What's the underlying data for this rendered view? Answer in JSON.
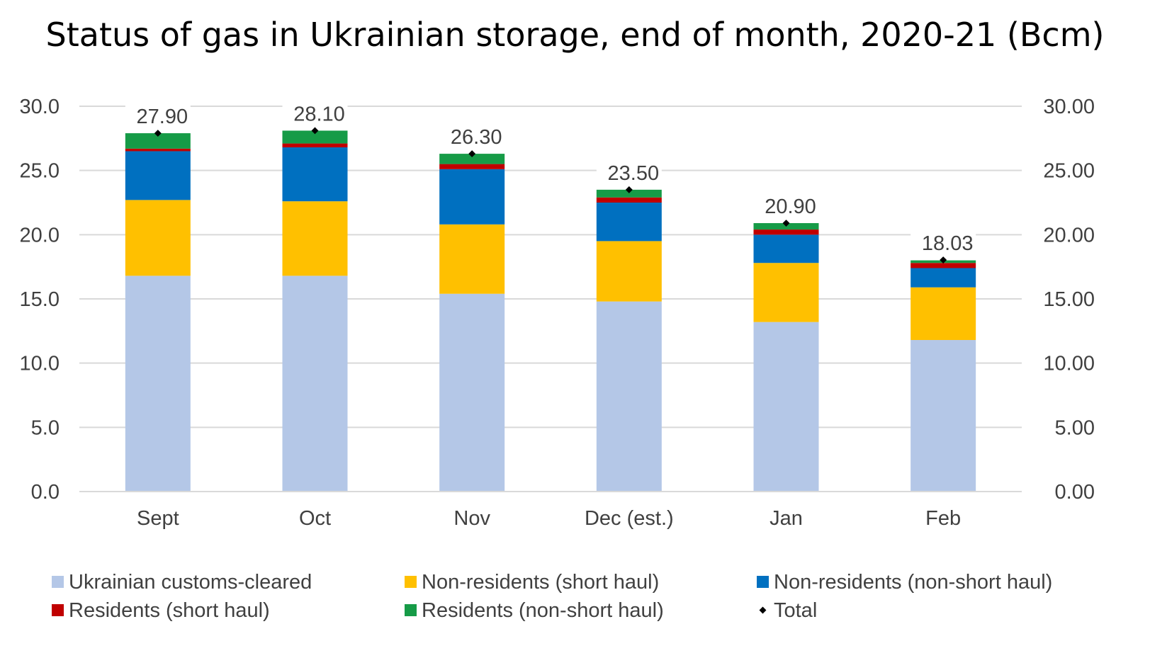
{
  "chart_data": {
    "type": "bar",
    "stacked": true,
    "title": "Status of gas in Ukrainian storage, end of month, 2020-21 (Bcm)",
    "categories": [
      "Sept",
      "Oct",
      "Nov",
      "Dec (est.)",
      "Jan",
      "Feb"
    ],
    "series": [
      {
        "name": "Ukrainian customs-cleared",
        "color": "#B4C7E7",
        "values": [
          16.8,
          16.8,
          15.4,
          14.8,
          13.2,
          11.8
        ]
      },
      {
        "name": "Non-residents (short haul)",
        "color": "#FFC000",
        "values": [
          5.9,
          5.8,
          5.4,
          4.7,
          4.6,
          4.1
        ]
      },
      {
        "name": "Non-residents (non-short haul)",
        "color": "#0070C0",
        "values": [
          3.8,
          4.2,
          4.3,
          3.0,
          2.2,
          1.5
        ]
      },
      {
        "name": "Residents (short haul)",
        "color": "#C00000",
        "values": [
          0.2,
          0.3,
          0.4,
          0.4,
          0.4,
          0.4
        ]
      },
      {
        "name": "Residents (non-short haul)",
        "color": "#169B47",
        "values": [
          1.2,
          1.0,
          0.8,
          0.6,
          0.5,
          0.2
        ]
      }
    ],
    "total": {
      "name": "Total",
      "color": "#000000",
      "values": [
        27.9,
        28.1,
        26.3,
        23.5,
        20.9,
        18.03
      ],
      "labels": [
        "27.90",
        "28.10",
        "26.30",
        "23.50",
        "20.90",
        "18.03"
      ]
    },
    "ylim": [
      0,
      30
    ],
    "y_ticks": [
      0,
      5,
      10,
      15,
      20,
      25,
      30
    ],
    "y_tick_labels_left": [
      "0.0",
      "5.0",
      "10.0",
      "15.0",
      "20.0",
      "25.0",
      "30.0"
    ],
    "y_tick_labels_right": [
      "0.00",
      "5.00",
      "10.00",
      "15.00",
      "20.00",
      "25.00",
      "30.00"
    ],
    "xlabel": "",
    "ylabel": "",
    "grid": true,
    "legend_position": "bottom",
    "legend_order": [
      "Ukrainian customs-cleared",
      "Non-residents (short haul)",
      "Non-residents (non-short haul)",
      "Residents (short haul)",
      "Residents (non-short haul)",
      "Total"
    ]
  }
}
